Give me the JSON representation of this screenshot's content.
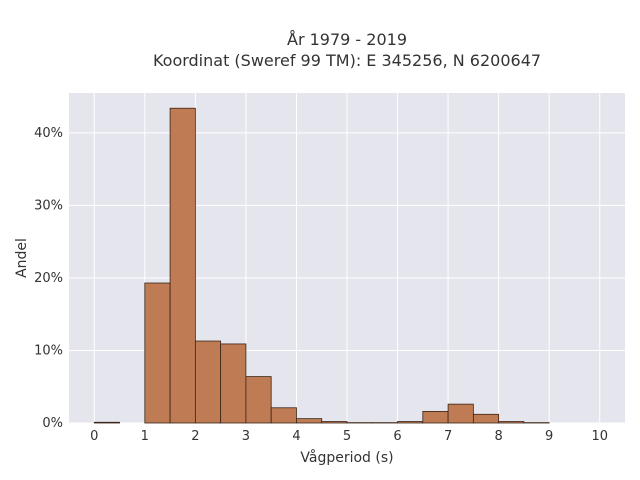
{
  "chart_data": {
    "type": "bar",
    "title_lines": [
      "År 1979 - 2019",
      "Koordinat (Sweref 99 TM): E 345256, N 6200647"
    ],
    "xlabel": "Vågperiod (s)",
    "ylabel": "Andel",
    "xlim": [
      -0.5,
      10.5
    ],
    "ylim": [
      0,
      45.5
    ],
    "x_ticks": [
      0,
      1,
      2,
      3,
      4,
      5,
      6,
      7,
      8,
      9,
      10
    ],
    "x_tick_labels": [
      "0",
      "1",
      "2",
      "3",
      "4",
      "5",
      "6",
      "7",
      "8",
      "9",
      "10"
    ],
    "y_ticks": [
      0,
      10,
      20,
      30,
      40
    ],
    "y_tick_labels": [
      "0%",
      "10%",
      "20%",
      "30%",
      "40%"
    ],
    "grid": true,
    "bin_width": 0.5,
    "bins": [
      {
        "x0": 0.0,
        "value": 0.1
      },
      {
        "x0": 0.5,
        "value": 0.0
      },
      {
        "x0": 1.0,
        "value": 19.3
      },
      {
        "x0": 1.5,
        "value": 43.4
      },
      {
        "x0": 2.0,
        "value": 11.3
      },
      {
        "x0": 2.5,
        "value": 10.9
      },
      {
        "x0": 3.0,
        "value": 6.4
      },
      {
        "x0": 3.5,
        "value": 2.1
      },
      {
        "x0": 4.0,
        "value": 0.6
      },
      {
        "x0": 4.5,
        "value": 0.2
      },
      {
        "x0": 5.0,
        "value": 0.05
      },
      {
        "x0": 5.5,
        "value": 0.05
      },
      {
        "x0": 6.0,
        "value": 0.2
      },
      {
        "x0": 6.5,
        "value": 1.6
      },
      {
        "x0": 7.0,
        "value": 2.6
      },
      {
        "x0": 7.5,
        "value": 1.2
      },
      {
        "x0": 8.0,
        "value": 0.2
      },
      {
        "x0": 8.5,
        "value": 0.05
      }
    ],
    "colors": {
      "bar_fill": "#bf7c54",
      "bar_stroke": "#3a2416",
      "plot_bg": "#e5e5ee",
      "grid": "#ffffff"
    }
  }
}
